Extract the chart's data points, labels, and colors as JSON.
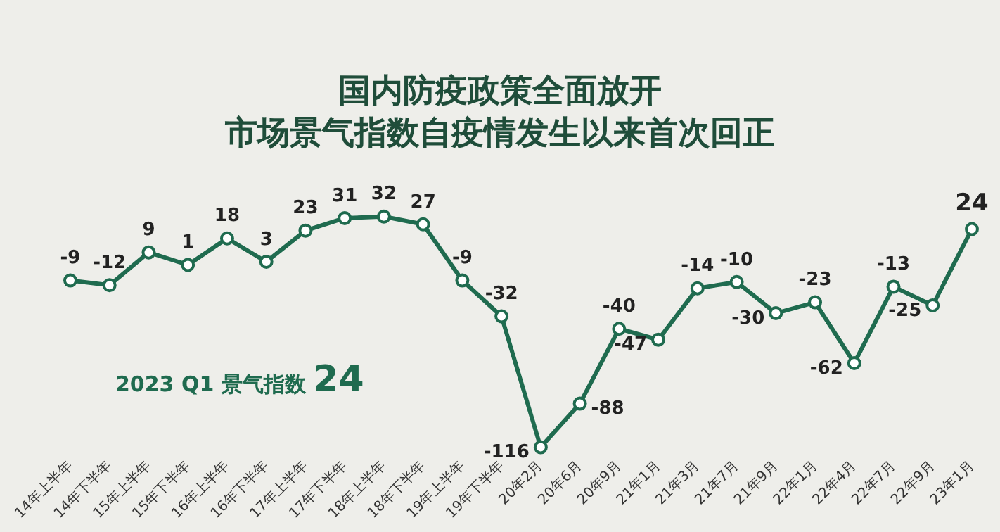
{
  "chart_data": {
    "type": "line",
    "title": "国内防疫政策全面放开",
    "subtitle": "市场景气指数自疫情发生以来首次回正",
    "categories": [
      "14年上半年",
      "14年下半年",
      "15年上半年",
      "15年下半年",
      "16年上半年",
      "16年下半年",
      "17年上半年",
      "17年下半年",
      "18年上半年",
      "18年下半年",
      "19年上半年",
      "19年下半年",
      "20年2月",
      "20年6月",
      "20年9月",
      "21年1月",
      "21年3月",
      "21年7月",
      "21年9月",
      "22年1月",
      "22年4月",
      "22年7月",
      "22年9月",
      "23年1月"
    ],
    "series": [
      {
        "color": "#1f6b4f",
        "values": [
          -9,
          -12,
          9,
          1,
          18,
          3,
          23,
          31,
          32,
          27,
          -9,
          -32,
          -116,
          -88,
          -40,
          -47,
          -14,
          -10,
          -30,
          -23,
          -62,
          -13,
          -25,
          24
        ]
      }
    ],
    "annotations": [
      "2023 Q1 景气指数 24"
    ],
    "data_labels": true,
    "marker": "circle",
    "line_style": "solid",
    "grid": false,
    "legend": false,
    "tick_labels": "x"
  }
}
